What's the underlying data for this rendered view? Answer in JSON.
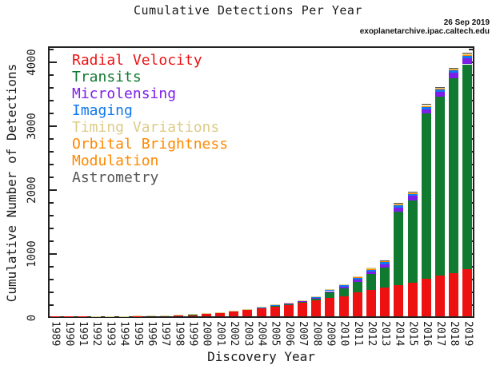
{
  "title": "Cumulative Detections Per Year",
  "stamp": {
    "date": "26 Sep 2019",
    "url": "exoplanetarchive.ipac.caltech.edu"
  },
  "axes": {
    "x_label": "Discovery Year",
    "y_label": "Cumulative Number of Detections",
    "y_tick_labels": [
      "0",
      "1000",
      "2000",
      "3000",
      "4000"
    ]
  },
  "legend": {
    "lines": [
      {
        "label": "Radial Velocity",
        "color": "#ee1111"
      },
      {
        "label": "Transits",
        "color": "#107a30"
      },
      {
        "label": "Microlensing",
        "color": "#7d1ee8"
      },
      {
        "label": "Imaging",
        "color": "#1178ee"
      },
      {
        "label": "Timing Variations",
        "color": "#ddcc88"
      },
      {
        "label": "Orbital Brightness",
        "color": "#ff8800"
      },
      {
        "label": "Modulation",
        "color": "#ff8800"
      },
      {
        "label": "Astrometry",
        "color": "#555555"
      }
    ]
  },
  "chart_data": {
    "type": "bar",
    "stacked": true,
    "values_are_cumulative": true,
    "title": "Cumulative Detections Per Year",
    "xlabel": "Discovery Year",
    "ylabel": "Cumulative Number of Detections",
    "ylim": [
      0,
      4250
    ],
    "y_major_step": 1000,
    "y_minor_step": 200,
    "grid": false,
    "legend_position": "top-left-inside",
    "categories": [
      1989,
      1990,
      1991,
      1992,
      1993,
      1994,
      1995,
      1996,
      1997,
      1998,
      1999,
      2000,
      2001,
      2002,
      2003,
      2004,
      2005,
      2006,
      2007,
      2008,
      2009,
      2010,
      2011,
      2012,
      2013,
      2014,
      2015,
      2016,
      2017,
      2018,
      2019
    ],
    "series": [
      {
        "name": "Radial Velocity",
        "color": "#ee1111",
        "values": [
          1,
          1,
          1,
          1,
          2,
          2,
          3,
          9,
          10,
          17,
          29,
          44,
          57,
          88,
          110,
          128,
          155,
          178,
          208,
          245,
          290,
          315,
          375,
          413,
          450,
          490,
          525,
          590,
          640,
          675,
          740
        ]
      },
      {
        "name": "Transits",
        "color": "#107a30",
        "values": [
          0,
          0,
          0,
          0,
          0,
          0,
          0,
          0,
          0,
          0,
          1,
          1,
          1,
          2,
          3,
          10,
          12,
          12,
          13,
          25,
          80,
          120,
          168,
          248,
          312,
          1150,
          1290,
          2581,
          2792,
          3048,
          3204
        ]
      },
      {
        "name": "Microlensing",
        "color": "#7d1ee8",
        "values": [
          0,
          0,
          0,
          0,
          0,
          0,
          0,
          0,
          0,
          0,
          0,
          0,
          0,
          0,
          0,
          3,
          4,
          8,
          12,
          16,
          24,
          28,
          35,
          45,
          55,
          62,
          68,
          72,
          78,
          84,
          89
        ]
      },
      {
        "name": "Imaging",
        "color": "#1178ee",
        "values": [
          0,
          0,
          0,
          0,
          0,
          0,
          0,
          0,
          0,
          0,
          0,
          0,
          0,
          0,
          0,
          2,
          6,
          9,
          13,
          21,
          26,
          30,
          32,
          34,
          38,
          40,
          42,
          44,
          45,
          46,
          48
        ]
      },
      {
        "name": "Orbital Brightness Modulation",
        "color": "#ff8800",
        "values": [
          0,
          0,
          0,
          0,
          0,
          0,
          0,
          0,
          0,
          0,
          0,
          0,
          0,
          0,
          0,
          0,
          0,
          0,
          0,
          0,
          0,
          0,
          1,
          3,
          5,
          6,
          6,
          7,
          8,
          9,
          9
        ]
      },
      {
        "name": "Timing Variations",
        "color": "#ddcc88",
        "values": [
          0,
          0,
          0,
          3,
          3,
          4,
          4,
          4,
          4,
          4,
          4,
          4,
          4,
          4,
          5,
          5,
          5,
          5,
          6,
          8,
          10,
          12,
          14,
          17,
          19,
          21,
          23,
          25,
          26,
          27,
          29
        ]
      },
      {
        "name": "Astrometry",
        "color": "#555555",
        "values": [
          0,
          0,
          0,
          0,
          0,
          0,
          0,
          0,
          0,
          0,
          0,
          0,
          0,
          0,
          0,
          0,
          0,
          0,
          0,
          0,
          0,
          0,
          0,
          0,
          1,
          1,
          1,
          1,
          1,
          1,
          1
        ]
      }
    ]
  }
}
